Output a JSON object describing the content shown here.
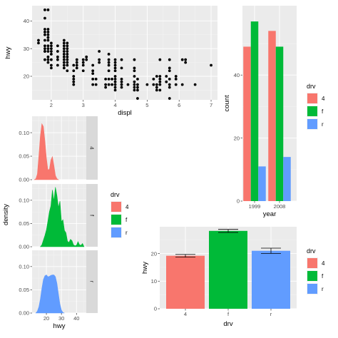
{
  "colors": {
    "4": "#F8766D",
    "f": "#00BA38",
    "r": "#619CFF"
  },
  "chart_data": [
    {
      "type": "scatter",
      "xlabel": "displ",
      "ylabel": "hwy",
      "xlim": [
        1.4,
        7.2
      ],
      "ylim": [
        11.5,
        45.5
      ],
      "xticks": [
        2,
        3,
        4,
        5,
        6,
        7
      ],
      "yticks": [
        20,
        30,
        40
      ],
      "points": [
        [
          1.6,
          33
        ],
        [
          1.6,
          32
        ],
        [
          1.8,
          29
        ],
        [
          1.8,
          29
        ],
        [
          1.8,
          26
        ],
        [
          1.8,
          31
        ],
        [
          1.8,
          44
        ],
        [
          1.8,
          41
        ],
        [
          1.8,
          36
        ],
        [
          1.8,
          35
        ],
        [
          1.8,
          37
        ],
        [
          1.8,
          30
        ],
        [
          1.8,
          33
        ],
        [
          1.9,
          44
        ],
        [
          1.9,
          29
        ],
        [
          1.9,
          26
        ],
        [
          1.9,
          25
        ],
        [
          1.9,
          30
        ],
        [
          1.9,
          31
        ],
        [
          1.9,
          27
        ],
        [
          1.9,
          33
        ],
        [
          1.9,
          35
        ],
        [
          1.9,
          36
        ],
        [
          1.9,
          37
        ],
        [
          1.9,
          34
        ],
        [
          2.0,
          31
        ],
        [
          2.0,
          29
        ],
        [
          2.0,
          28
        ],
        [
          2.0,
          26
        ],
        [
          2.0,
          30
        ],
        [
          2.0,
          24
        ],
        [
          2.0,
          23
        ],
        [
          2.0,
          32
        ],
        [
          2.2,
          27
        ],
        [
          2.2,
          29
        ],
        [
          2.2,
          26
        ],
        [
          2.2,
          24
        ],
        [
          2.2,
          31
        ],
        [
          2.4,
          31
        ],
        [
          2.4,
          30
        ],
        [
          2.4,
          27
        ],
        [
          2.4,
          26
        ],
        [
          2.4,
          24
        ],
        [
          2.4,
          32
        ],
        [
          2.4,
          33
        ],
        [
          2.4,
          23
        ],
        [
          2.4,
          28
        ],
        [
          2.4,
          25
        ],
        [
          2.4,
          29
        ],
        [
          2.5,
          26
        ],
        [
          2.5,
          31
        ],
        [
          2.5,
          29
        ],
        [
          2.5,
          30
        ],
        [
          2.5,
          25
        ],
        [
          2.5,
          27
        ],
        [
          2.5,
          24
        ],
        [
          2.5,
          22
        ],
        [
          2.5,
          32
        ],
        [
          2.5,
          28
        ],
        [
          2.7,
          20
        ],
        [
          2.7,
          22
        ],
        [
          2.7,
          24
        ],
        [
          2.7,
          18
        ],
        [
          2.7,
          19
        ],
        [
          2.7,
          17
        ],
        [
          2.8,
          26
        ],
        [
          2.8,
          25
        ],
        [
          2.8,
          23
        ],
        [
          2.8,
          24
        ],
        [
          3.0,
          26
        ],
        [
          3.0,
          24
        ],
        [
          3.0,
          22
        ],
        [
          3.0,
          25
        ],
        [
          3.1,
          27
        ],
        [
          3.1,
          26
        ],
        [
          3.3,
          22
        ],
        [
          3.3,
          24
        ],
        [
          3.3,
          21
        ],
        [
          3.3,
          19
        ],
        [
          3.3,
          17
        ],
        [
          3.4,
          17
        ],
        [
          3.4,
          19
        ],
        [
          3.5,
          29
        ],
        [
          3.5,
          26
        ],
        [
          3.5,
          25
        ],
        [
          3.7,
          17
        ],
        [
          3.7,
          19
        ],
        [
          3.7,
          16
        ],
        [
          3.8,
          26
        ],
        [
          3.8,
          25
        ],
        [
          3.8,
          22
        ],
        [
          3.8,
          28
        ],
        [
          3.8,
          24
        ],
        [
          3.8,
          17
        ],
        [
          3.8,
          19
        ],
        [
          3.9,
          17
        ],
        [
          3.9,
          19
        ],
        [
          4.0,
          22
        ],
        [
          4.0,
          26
        ],
        [
          4.0,
          23
        ],
        [
          4.0,
          19
        ],
        [
          4.0,
          18
        ],
        [
          4.0,
          17
        ],
        [
          4.0,
          20
        ],
        [
          4.0,
          24
        ],
        [
          4.0,
          15
        ],
        [
          4.0,
          16
        ],
        [
          4.0,
          25
        ],
        [
          4.2,
          23
        ],
        [
          4.2,
          26
        ],
        [
          4.2,
          18
        ],
        [
          4.2,
          19
        ],
        [
          4.2,
          17
        ],
        [
          4.2,
          16
        ],
        [
          4.4,
          17
        ],
        [
          4.6,
          23
        ],
        [
          4.6,
          20
        ],
        [
          4.6,
          17
        ],
        [
          4.6,
          22
        ],
        [
          4.6,
          26
        ],
        [
          4.6,
          15
        ],
        [
          4.6,
          18
        ],
        [
          4.6,
          16
        ],
        [
          4.7,
          17
        ],
        [
          4.7,
          19
        ],
        [
          4.7,
          16
        ],
        [
          4.7,
          15
        ],
        [
          4.7,
          12
        ],
        [
          5.0,
          17
        ],
        [
          5.2,
          19
        ],
        [
          5.2,
          17
        ],
        [
          5.3,
          16
        ],
        [
          5.3,
          17
        ],
        [
          5.3,
          15
        ],
        [
          5.3,
          20
        ],
        [
          5.4,
          17
        ],
        [
          5.4,
          19
        ],
        [
          5.4,
          18
        ],
        [
          5.4,
          26
        ],
        [
          5.4,
          20
        ],
        [
          5.4,
          15
        ],
        [
          5.6,
          18
        ],
        [
          5.6,
          20
        ],
        [
          5.7,
          17
        ],
        [
          5.7,
          16
        ],
        [
          5.7,
          23
        ],
        [
          5.7,
          22
        ],
        [
          5.7,
          19
        ],
        [
          5.7,
          26
        ],
        [
          5.7,
          12
        ],
        [
          5.9,
          17
        ],
        [
          5.9,
          19
        ],
        [
          5.9,
          20
        ],
        [
          6.1,
          17
        ],
        [
          6.1,
          26
        ],
        [
          6.2,
          26
        ],
        [
          6.2,
          25
        ],
        [
          6.5,
          17
        ],
        [
          7.0,
          24
        ]
      ]
    },
    {
      "type": "bar",
      "xlabel": "year",
      "ylabel": "count",
      "categories": [
        "1999",
        "2008"
      ],
      "ylim": [
        0,
        62
      ],
      "yticks": [
        0,
        20,
        40
      ],
      "legend_title": "drv",
      "legend_position": "right",
      "series": [
        {
          "name": "4",
          "values": [
            49,
            54
          ]
        },
        {
          "name": "f",
          "values": [
            57,
            49
          ]
        },
        {
          "name": "r",
          "values": [
            11,
            14
          ]
        }
      ]
    },
    {
      "type": "area",
      "xlabel": "hwy",
      "ylabel": "density",
      "xlim": [
        10.5,
        46.5
      ],
      "xticks": [
        20,
        30,
        40
      ],
      "ylim": [
        0,
        0.135
      ],
      "yticks": [
        0.0,
        0.05,
        0.1
      ],
      "legend_title": "drv",
      "legend_position": "right",
      "facets": [
        {
          "strip": "4",
          "curve": [
            [
              12,
              0
            ],
            [
              13,
              0.002
            ],
            [
              14,
              0.012
            ],
            [
              15,
              0.05
            ],
            [
              16,
              0.093
            ],
            [
              17,
              0.119
            ],
            [
              18,
              0.113
            ],
            [
              19,
              0.083
            ],
            [
              20,
              0.046
            ],
            [
              21,
              0.021
            ],
            [
              22,
              0.022
            ],
            [
              23,
              0.042
            ],
            [
              24,
              0.049
            ],
            [
              25,
              0.03
            ],
            [
              26,
              0.009
            ],
            [
              27,
              0.002
            ],
            [
              28,
              0
            ]
          ]
        },
        {
          "strip": "f",
          "curve": [
            [
              16,
              0
            ],
            [
              17,
              0.004
            ],
            [
              18,
              0.014
            ],
            [
              19,
              0.024
            ],
            [
              20,
              0.036
            ],
            [
              21,
              0.055
            ],
            [
              22,
              0.075
            ],
            [
              23,
              0.088
            ],
            [
              24,
              0.122
            ],
            [
              25,
              0.098
            ],
            [
              26,
              0.128
            ],
            [
              27,
              0.11
            ],
            [
              28,
              0.084
            ],
            [
              29,
              0.098
            ],
            [
              30,
              0.054
            ],
            [
              31,
              0.058
            ],
            [
              32,
              0.035
            ],
            [
              33,
              0.03
            ],
            [
              34,
              0.012
            ],
            [
              35,
              0.009
            ],
            [
              36,
              0.016
            ],
            [
              37,
              0.013
            ],
            [
              38,
              0.004
            ],
            [
              39,
              0.002
            ],
            [
              40,
              0.003
            ],
            [
              41,
              0.011
            ],
            [
              42,
              0.004
            ],
            [
              43,
              0.003
            ],
            [
              44,
              0.007
            ],
            [
              45,
              0
            ]
          ]
        },
        {
          "strip": "r",
          "curve": [
            [
              13,
              0
            ],
            [
              14,
              0.004
            ],
            [
              15,
              0.013
            ],
            [
              16,
              0.03
            ],
            [
              17,
              0.053
            ],
            [
              18,
              0.072
            ],
            [
              19,
              0.08
            ],
            [
              20,
              0.082
            ],
            [
              21,
              0.078
            ],
            [
              22,
              0.079
            ],
            [
              23,
              0.081
            ],
            [
              24,
              0.082
            ],
            [
              25,
              0.082
            ],
            [
              26,
              0.078
            ],
            [
              27,
              0.064
            ],
            [
              28,
              0.041
            ],
            [
              29,
              0.019
            ],
            [
              30,
              0.006
            ],
            [
              31,
              0.001
            ],
            [
              32,
              0
            ]
          ]
        }
      ]
    },
    {
      "type": "bar",
      "xlabel": "drv",
      "ylabel": "hwy",
      "categories": [
        "4",
        "f",
        "r"
      ],
      "values": [
        19.2,
        28.2,
        21.0
      ],
      "errors": [
        0.5,
        0.55,
        0.95
      ],
      "ylim": [
        0,
        29.7
      ],
      "yticks": [
        0,
        10,
        20
      ],
      "legend_title": "drv",
      "legend_position": "right"
    }
  ]
}
